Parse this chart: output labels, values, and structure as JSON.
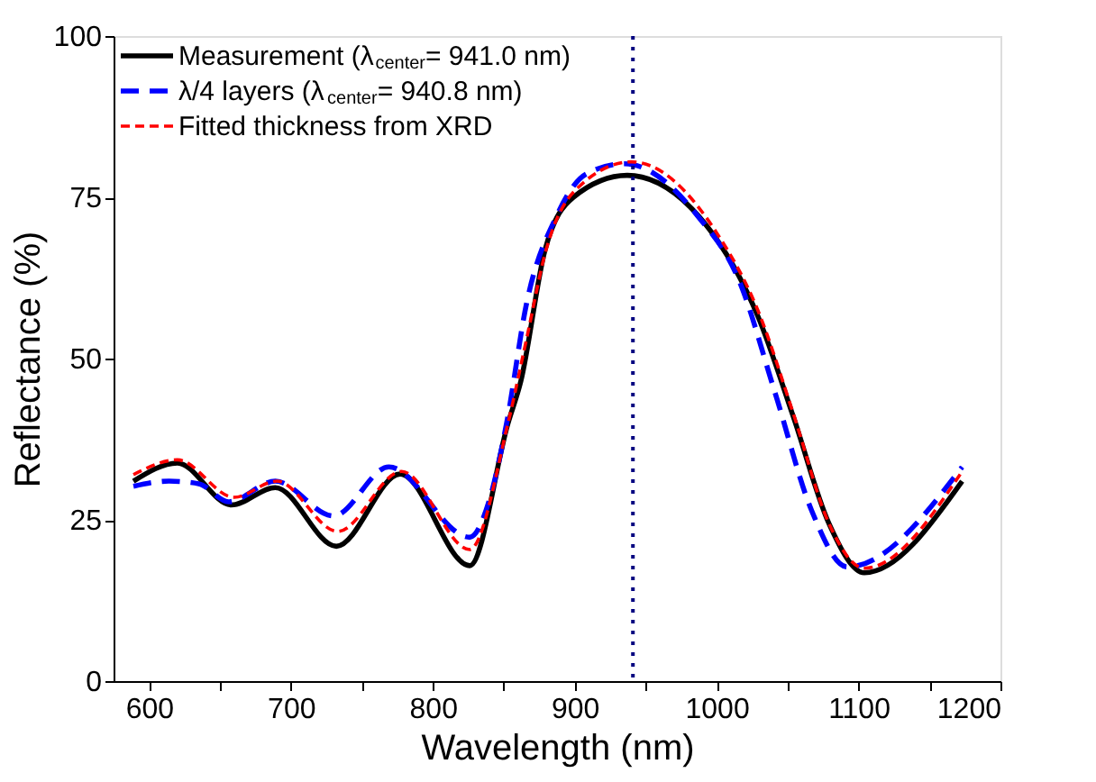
{
  "chart_data": {
    "type": "line",
    "xlabel": "Wavelength (nm)",
    "ylabel": "Reflectance (%)",
    "xlim": [
      575,
      1200
    ],
    "xticks": [
      600,
      {
        "value": 650,
        "label": null
      },
      700,
      {
        "value": 750,
        "label": null
      },
      800,
      {
        "value": 850,
        "label": null
      },
      900,
      {
        "value": 950,
        "label": null
      },
      1000,
      {
        "value": 1050,
        "label": null
      },
      1100,
      {
        "value": 1150,
        "label": null
      },
      1200
    ],
    "ylim": [
      0,
      100
    ],
    "yticks": [
      0,
      25,
      50,
      75,
      100
    ],
    "grid": false,
    "legend": "top left",
    "marker": "none",
    "series": [
      {
        "name": "Measurement (λ$_{center}$= 941.0 nm)",
        "color": "#000000",
        "line_style": "solid",
        "x": [
          589,
          620,
          658,
          689,
          732,
          777,
          826,
          853,
          862,
          879,
          899,
          937,
          1000,
          1029,
          1054,
          1079,
          1104,
          1173
        ],
        "values": [
          31.0,
          33.8,
          27.3,
          30.0,
          20.9,
          32.1,
          17.9,
          40,
          46.5,
          66.8,
          75,
          78.4,
          68.5,
          56.6,
          41,
          24.5,
          16.8,
          31
        ]
      },
      {
        "name": "λ/4 layers (λ$_{center}$= 940.8 nm)",
        "color": "#0000ff",
        "line_style": "dashed",
        "x": [
          589,
          614,
          635,
          656,
          689,
          730,
          769,
          826,
          840,
          852,
          866,
          887,
          908,
          935,
          987,
          1016,
          1041,
          1067,
          1092,
          1173
        ],
        "values": [
          30.2,
          31,
          30.6,
          27.8,
          31,
          25.6,
          33.2,
          22.3,
          28.2,
          40,
          58.5,
          72,
          78.6,
          80.2,
          72,
          62,
          44.8,
          26.4,
          17.7,
          33.2
        ]
      },
      {
        "name": "Fitted thickness from XRD",
        "color": "#ff0000",
        "line_style": "dotted",
        "x": [
          589,
          620,
          660,
          690,
          733,
          778,
          826,
          853,
          866,
          880,
          900,
          940,
          1000,
          1029,
          1054,
          1079,
          1104,
          1173
        ],
        "values": [
          32,
          34.3,
          28.5,
          31,
          23.2,
          32.5,
          20.4,
          40,
          53,
          67,
          76,
          80.5,
          69.5,
          57.5,
          41.5,
          24.5,
          17.5,
          32.5
        ]
      }
    ],
    "ref_lines": [
      {
        "axis": "x",
        "value": 941,
        "color": "#000080",
        "line_style": "dotted"
      }
    ]
  }
}
